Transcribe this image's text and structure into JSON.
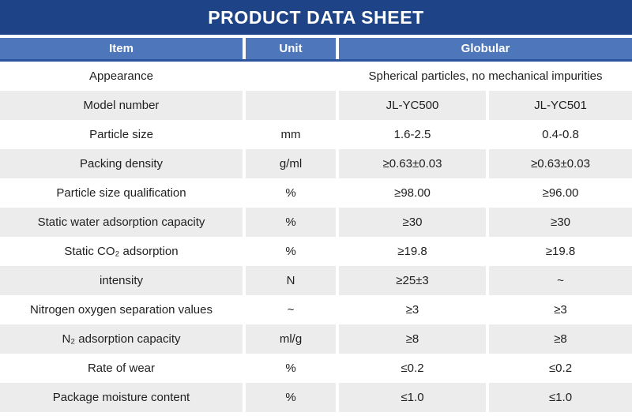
{
  "title": "PRODUCT DATA SHEET",
  "colors": {
    "title_bar": "#1e4487",
    "header_fill": "#4e76bb",
    "header_border": "#2b549e",
    "row_alt": "#ececec",
    "text": "#1f1f1f",
    "header_text": "#ffffff"
  },
  "table": {
    "columns": [
      "Item",
      "Unit",
      "Globular"
    ],
    "rows": [
      {
        "item": "Appearance",
        "unit": "",
        "merged": "Spherical particles, no mechanical impurities"
      },
      {
        "item": "Model number",
        "unit": "",
        "values": [
          "JL-YC500",
          "JL-YC501"
        ]
      },
      {
        "item": "Particle size",
        "unit": "mm",
        "values": [
          "1.6-2.5",
          "0.4-0.8"
        ]
      },
      {
        "item": "Packing density",
        "unit": "g/ml",
        "values": [
          "≥0.63±0.03",
          "≥0.63±0.03"
        ]
      },
      {
        "item": "Particle size qualification",
        "unit": "%",
        "values": [
          "≥98.00",
          "≥96.00"
        ]
      },
      {
        "item": "Static water adsorption capacity",
        "unit": "%",
        "values": [
          "≥30",
          "≥30"
        ]
      },
      {
        "item": "Static CO₂ adsorption",
        "unit": "%",
        "values": [
          "≥19.8",
          "≥19.8"
        ]
      },
      {
        "item": "intensity",
        "unit": "N",
        "values": [
          "≥25±3",
          "~"
        ]
      },
      {
        "item": "Nitrogen oxygen separation values",
        "unit": "~",
        "values": [
          "≥3",
          "≥3"
        ]
      },
      {
        "item": "N₂ adsorption capacity",
        "unit": "ml/g",
        "values": [
          "≥8",
          "≥8"
        ]
      },
      {
        "item": "Rate of wear",
        "unit": "%",
        "values": [
          "≤0.2",
          "≤0.2"
        ]
      },
      {
        "item": "Package moisture content",
        "unit": "%",
        "values": [
          "≤1.0",
          "≤1.0"
        ]
      }
    ]
  }
}
